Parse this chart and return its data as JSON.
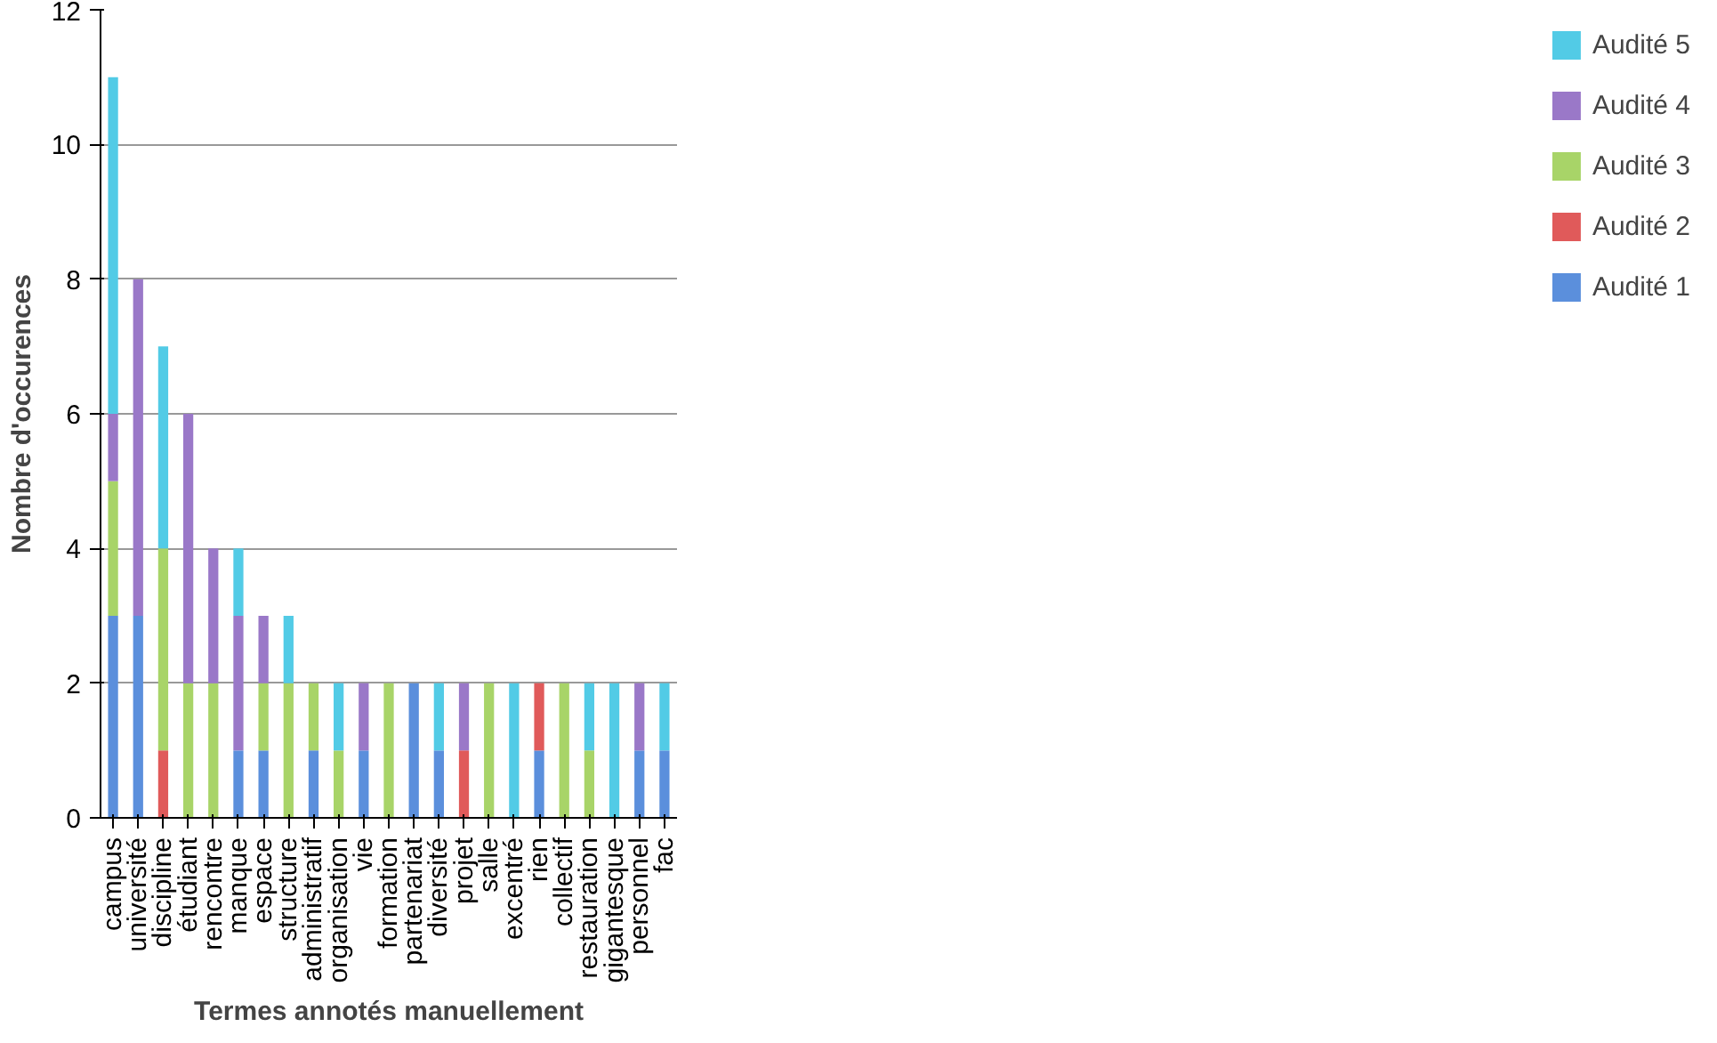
{
  "chart_data": {
    "type": "bar",
    "stacked": true,
    "xlabel": "Termes annotés manuellement",
    "ylabel": "Nombre d'occurences",
    "categories": [
      "campus",
      "université",
      "discipline",
      "étudiant",
      "rencontre",
      "manque",
      "espace",
      "structure",
      "administratif",
      "organisation",
      "vie",
      "formation",
      "partenariat",
      "diversité",
      "projet",
      "salle",
      "excentré",
      "rien",
      "collectif",
      "restauration",
      "gigantesque",
      "personnel",
      "fac"
    ],
    "series": [
      {
        "name": "Audité 1",
        "color": "#5b8fdc",
        "values": [
          3,
          3,
          0,
          0,
          0,
          1,
          1,
          0,
          1,
          0,
          1,
          0,
          2,
          1,
          0,
          0,
          0,
          1,
          0,
          0,
          0,
          1,
          1
        ]
      },
      {
        "name": "Audité 2",
        "color": "#e05a5a",
        "values": [
          0,
          0,
          1,
          0,
          0,
          0,
          0,
          0,
          0,
          0,
          0,
          0,
          0,
          0,
          1,
          0,
          0,
          1,
          0,
          0,
          0,
          0,
          0
        ]
      },
      {
        "name": "Audité 3",
        "color": "#a8d468",
        "values": [
          2,
          0,
          3,
          2,
          2,
          0,
          1,
          2,
          1,
          1,
          0,
          2,
          0,
          0,
          0,
          2,
          0,
          0,
          2,
          1,
          0,
          0,
          0
        ]
      },
      {
        "name": "Audité 4",
        "color": "#9a78c8",
        "values": [
          1,
          5,
          0,
          4,
          2,
          2,
          1,
          0,
          0,
          0,
          1,
          0,
          0,
          0,
          1,
          0,
          0,
          0,
          0,
          0,
          0,
          1,
          0
        ]
      },
      {
        "name": "Audité 5",
        "color": "#52cbe6",
        "values": [
          5,
          0,
          3,
          0,
          0,
          1,
          0,
          1,
          0,
          1,
          0,
          0,
          0,
          1,
          0,
          0,
          2,
          0,
          0,
          1,
          2,
          0,
          1
        ]
      }
    ],
    "ylim": [
      0,
      12
    ],
    "yticks": [
      0,
      2,
      4,
      6,
      8,
      10,
      12
    ],
    "grid": "y",
    "legend": "right"
  }
}
